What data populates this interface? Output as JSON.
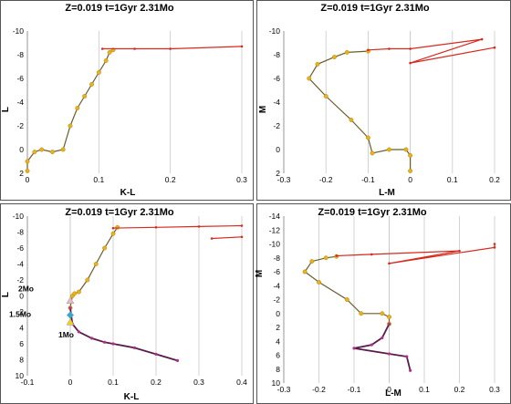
{
  "colors": {
    "red_giant_track": "#d62a1e",
    "ms_track": "#e8b21a",
    "low_mass_track": "#5a1a4a",
    "low_mass_points": "#b0308a",
    "marker_2mo": "#f2b6c0",
    "marker_15mo": "#3aa7c8",
    "marker_1mo": "#f2d21a",
    "grid": "#c8c8c8",
    "border": "#555555"
  },
  "chart_data": [
    {
      "type": "line",
      "title": "Z=0.019  t=1Gyr  2.31Mo",
      "xlabel": "K-L",
      "ylabel": "L",
      "xlim": [
        0,
        0.3
      ],
      "ylim": [
        2,
        -10
      ],
      "x_ticks": [
        "0",
        "0.1",
        "0.2",
        "0.3"
      ],
      "y_ticks": [
        "-10",
        "-8",
        "-6",
        "-4",
        "-2",
        "0",
        "2"
      ],
      "grid": "vertical",
      "series": [
        {
          "x": [
            0.0,
            0.0,
            0.01,
            0.02,
            0.035,
            0.05,
            0.06,
            0.07,
            0.08,
            0.09,
            0.1,
            0.11,
            0.115,
            0.12
          ],
          "y": [
            1.8,
            1.0,
            0.2,
            0.0,
            0.2,
            0.0,
            -2.0,
            -3.5,
            -4.5,
            -5.5,
            -6.5,
            -7.5,
            -8.2,
            -8.4
          ]
        },
        {
          "x": [
            0.105,
            0.15,
            0.2,
            0.3
          ],
          "y": [
            -8.5,
            -8.5,
            -8.5,
            -8.7
          ]
        }
      ]
    },
    {
      "type": "line",
      "title": "Z=0.019  t=1Gyr  2.31Mo",
      "xlabel": "L-M",
      "ylabel": "M",
      "xlim": [
        -0.3,
        0.2
      ],
      "ylim": [
        2,
        -10
      ],
      "x_ticks": [
        "-0.3",
        "-0.2",
        "-0.1",
        "0",
        "0.1",
        "0.2"
      ],
      "y_ticks": [
        "-10",
        "-8",
        "-6",
        "-4",
        "-2",
        "0",
        "2"
      ],
      "grid": "vertical",
      "series": [
        {
          "x": [
            0.0,
            0.0,
            -0.01,
            -0.05,
            -0.09,
            -0.1,
            -0.14,
            -0.2,
            -0.24,
            -0.22,
            -0.18,
            -0.15,
            -0.1
          ],
          "y": [
            1.8,
            0.5,
            0.0,
            0.0,
            0.3,
            -1.0,
            -2.5,
            -4.5,
            -6.0,
            -7.2,
            -7.8,
            -8.2,
            -8.3
          ]
        },
        {
          "x": [
            -0.1,
            -0.05,
            0.0,
            0.17,
            0.0,
            0.2
          ],
          "y": [
            -8.4,
            -8.5,
            -8.5,
            -9.3,
            -7.3,
            -8.6
          ]
        }
      ]
    },
    {
      "type": "line",
      "title": "Z=0.019   t=1Gyr   2.31Mo",
      "xlabel": "K-L",
      "ylabel": "L",
      "xlim": [
        -0.1,
        0.4
      ],
      "ylim": [
        10,
        -10
      ],
      "x_ticks": [
        "-0.1",
        "0",
        "0.1",
        "0.2",
        "0.3",
        "0.4"
      ],
      "y_ticks": [
        "-10",
        "-8",
        "-6",
        "-4",
        "-2",
        "0",
        "2",
        "4",
        "6",
        "8",
        "10"
      ],
      "grid": "vertical",
      "annotations": [
        "2Mo",
        "1.5Mo",
        "1Mo"
      ],
      "series": [
        {
          "x": [
            0.0,
            0.005,
            0.01,
            0.02,
            0.04,
            0.06,
            0.08,
            0.1,
            0.11
          ],
          "y": [
            1.5,
            0.0,
            -0.3,
            -0.5,
            -2.0,
            -4.0,
            -6.0,
            -7.8,
            -8.6
          ]
        },
        {
          "x": [
            0.1,
            0.2,
            0.3,
            0.4
          ],
          "y": [
            -8.5,
            -8.6,
            -8.7,
            -8.8
          ]
        },
        {
          "x": [
            0.33,
            0.4
          ],
          "y": [
            -7.2,
            -7.4
          ]
        },
        {
          "x": [
            0.0,
            0.005,
            0.02,
            0.05,
            0.08,
            0.1,
            0.15,
            0.2,
            0.25
          ],
          "y": [
            1.5,
            3.5,
            4.5,
            5.3,
            5.8,
            6.0,
            6.5,
            7.3,
            8.1
          ]
        }
      ]
    },
    {
      "type": "line",
      "title": "Z=0.019  t=1Gyr  2.31Mo",
      "xlabel": "L-M",
      "ylabel": "M",
      "xlim": [
        -0.3,
        0.3
      ],
      "ylim": [
        10,
        -14
      ],
      "x_ticks": [
        "-0.3",
        "-0.2",
        "-0.1",
        "0",
        "0.1",
        "0.2",
        "0.3"
      ],
      "y_ticks": [
        "-14",
        "-12",
        "-10",
        "-8",
        "-6",
        "-4",
        "-2",
        "0",
        "2",
        "4",
        "6",
        "8",
        "10"
      ],
      "grid": "vertical",
      "series": [
        {
          "x": [
            0.0,
            0.0,
            -0.02,
            -0.08,
            -0.12,
            -0.2,
            -0.24,
            -0.22,
            -0.18,
            -0.15
          ],
          "y": [
            1.5,
            0.5,
            0.0,
            0.0,
            -2.0,
            -4.5,
            -6.0,
            -7.5,
            -8.0,
            -8.2
          ]
        },
        {
          "x": [
            -0.15,
            -0.05,
            0.2,
            0.0,
            0.3,
            0.3
          ],
          "y": [
            -8.3,
            -8.5,
            -9.0,
            -7.2,
            -9.5,
            -10.0
          ]
        },
        {
          "x": [
            0.0,
            -0.02,
            -0.05,
            -0.1,
            0.0,
            0.05,
            0.06
          ],
          "y": [
            1.5,
            3.5,
            4.5,
            5.0,
            5.8,
            6.2,
            8.2
          ]
        }
      ]
    }
  ]
}
